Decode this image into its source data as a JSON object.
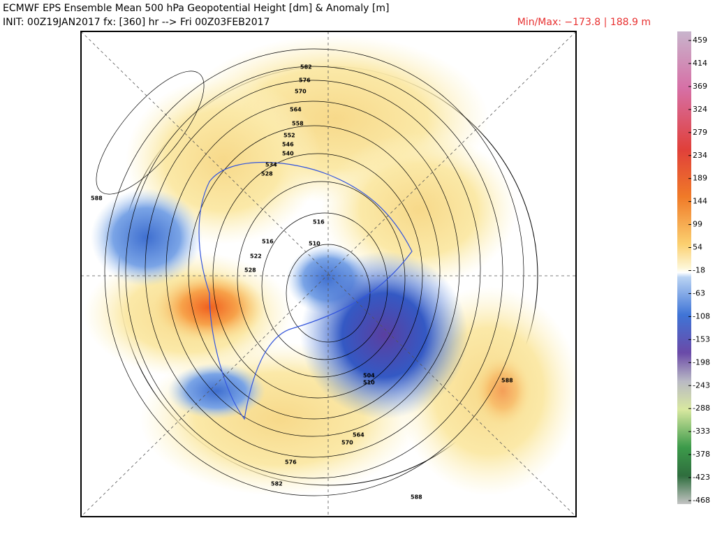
{
  "header": {
    "title": "ECMWF EPS Ensemble Mean 500 hPa Geopotential Height [dm] & Anomaly [m]",
    "init": "INIT: 00Z19JAN2017 fx: [360] hr --> Fri 00Z03FEB2017",
    "minmax": "Min/Max: −173.8 | 188.9 m"
  },
  "colorbar": {
    "ticks": [
      459,
      414,
      369,
      324,
      279,
      234,
      189,
      144,
      99,
      54,
      -18,
      -63,
      -108,
      -153,
      -198,
      -243,
      -288,
      -333,
      -378,
      -423,
      -468
    ]
  },
  "map": {
    "contour_labels": [
      "582",
      "576",
      "570",
      "564",
      "558",
      "552",
      "546",
      "540",
      "534",
      "528",
      "516",
      "510",
      "516",
      "522",
      "528",
      "588",
      "588",
      "504",
      "510",
      "564",
      "570",
      "576",
      "582",
      "588"
    ]
  }
}
